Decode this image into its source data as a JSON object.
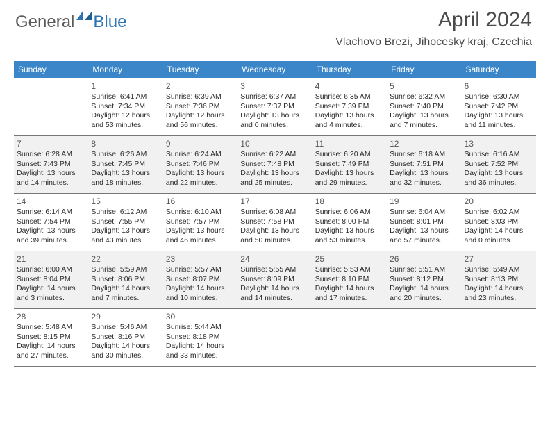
{
  "logo": {
    "textA": "General",
    "textB": "Blue"
  },
  "header": {
    "month_title": "April 2024",
    "location": "Vlachovo Brezi, Jihocesky kraj, Czechia"
  },
  "style": {
    "header_bg": "#3a86c8",
    "header_text": "#ffffff",
    "shaded_bg": "#f1f1f1",
    "line_color": "#767676",
    "body_text": "#2b2b2b",
    "day_number_color": "#555555",
    "logo_gray": "#5a5a5a",
    "logo_blue": "#2d74b3",
    "font_family": "Arial, Helvetica, sans-serif",
    "month_title_fontsize": 30,
    "location_fontsize": 16,
    "weekday_fontsize": 12,
    "daynum_fontsize": 12,
    "body_fontsize": 10.5
  },
  "weekdays": [
    "Sunday",
    "Monday",
    "Tuesday",
    "Wednesday",
    "Thursday",
    "Friday",
    "Saturday"
  ],
  "weeks": [
    {
      "shaded": false,
      "days": [
        null,
        {
          "num": "1",
          "sunrise": "6:41 AM",
          "sunset": "7:34 PM",
          "daylight": "12 hours and 53 minutes."
        },
        {
          "num": "2",
          "sunrise": "6:39 AM",
          "sunset": "7:36 PM",
          "daylight": "12 hours and 56 minutes."
        },
        {
          "num": "3",
          "sunrise": "6:37 AM",
          "sunset": "7:37 PM",
          "daylight": "13 hours and 0 minutes."
        },
        {
          "num": "4",
          "sunrise": "6:35 AM",
          "sunset": "7:39 PM",
          "daylight": "13 hours and 4 minutes."
        },
        {
          "num": "5",
          "sunrise": "6:32 AM",
          "sunset": "7:40 PM",
          "daylight": "13 hours and 7 minutes."
        },
        {
          "num": "6",
          "sunrise": "6:30 AM",
          "sunset": "7:42 PM",
          "daylight": "13 hours and 11 minutes."
        }
      ]
    },
    {
      "shaded": true,
      "days": [
        {
          "num": "7",
          "sunrise": "6:28 AM",
          "sunset": "7:43 PM",
          "daylight": "13 hours and 14 minutes."
        },
        {
          "num": "8",
          "sunrise": "6:26 AM",
          "sunset": "7:45 PM",
          "daylight": "13 hours and 18 minutes."
        },
        {
          "num": "9",
          "sunrise": "6:24 AM",
          "sunset": "7:46 PM",
          "daylight": "13 hours and 22 minutes."
        },
        {
          "num": "10",
          "sunrise": "6:22 AM",
          "sunset": "7:48 PM",
          "daylight": "13 hours and 25 minutes."
        },
        {
          "num": "11",
          "sunrise": "6:20 AM",
          "sunset": "7:49 PM",
          "daylight": "13 hours and 29 minutes."
        },
        {
          "num": "12",
          "sunrise": "6:18 AM",
          "sunset": "7:51 PM",
          "daylight": "13 hours and 32 minutes."
        },
        {
          "num": "13",
          "sunrise": "6:16 AM",
          "sunset": "7:52 PM",
          "daylight": "13 hours and 36 minutes."
        }
      ]
    },
    {
      "shaded": false,
      "days": [
        {
          "num": "14",
          "sunrise": "6:14 AM",
          "sunset": "7:54 PM",
          "daylight": "13 hours and 39 minutes."
        },
        {
          "num": "15",
          "sunrise": "6:12 AM",
          "sunset": "7:55 PM",
          "daylight": "13 hours and 43 minutes."
        },
        {
          "num": "16",
          "sunrise": "6:10 AM",
          "sunset": "7:57 PM",
          "daylight": "13 hours and 46 minutes."
        },
        {
          "num": "17",
          "sunrise": "6:08 AM",
          "sunset": "7:58 PM",
          "daylight": "13 hours and 50 minutes."
        },
        {
          "num": "18",
          "sunrise": "6:06 AM",
          "sunset": "8:00 PM",
          "daylight": "13 hours and 53 minutes."
        },
        {
          "num": "19",
          "sunrise": "6:04 AM",
          "sunset": "8:01 PM",
          "daylight": "13 hours and 57 minutes."
        },
        {
          "num": "20",
          "sunrise": "6:02 AM",
          "sunset": "8:03 PM",
          "daylight": "14 hours and 0 minutes."
        }
      ]
    },
    {
      "shaded": true,
      "days": [
        {
          "num": "21",
          "sunrise": "6:00 AM",
          "sunset": "8:04 PM",
          "daylight": "14 hours and 3 minutes."
        },
        {
          "num": "22",
          "sunrise": "5:59 AM",
          "sunset": "8:06 PM",
          "daylight": "14 hours and 7 minutes."
        },
        {
          "num": "23",
          "sunrise": "5:57 AM",
          "sunset": "8:07 PM",
          "daylight": "14 hours and 10 minutes."
        },
        {
          "num": "24",
          "sunrise": "5:55 AM",
          "sunset": "8:09 PM",
          "daylight": "14 hours and 14 minutes."
        },
        {
          "num": "25",
          "sunrise": "5:53 AM",
          "sunset": "8:10 PM",
          "daylight": "14 hours and 17 minutes."
        },
        {
          "num": "26",
          "sunrise": "5:51 AM",
          "sunset": "8:12 PM",
          "daylight": "14 hours and 20 minutes."
        },
        {
          "num": "27",
          "sunrise": "5:49 AM",
          "sunset": "8:13 PM",
          "daylight": "14 hours and 23 minutes."
        }
      ]
    },
    {
      "shaded": false,
      "days": [
        {
          "num": "28",
          "sunrise": "5:48 AM",
          "sunset": "8:15 PM",
          "daylight": "14 hours and 27 minutes."
        },
        {
          "num": "29",
          "sunrise": "5:46 AM",
          "sunset": "8:16 PM",
          "daylight": "14 hours and 30 minutes."
        },
        {
          "num": "30",
          "sunrise": "5:44 AM",
          "sunset": "8:18 PM",
          "daylight": "14 hours and 33 minutes."
        },
        null,
        null,
        null,
        null
      ]
    }
  ],
  "labels": {
    "sunrise": "Sunrise:",
    "sunset": "Sunset:",
    "daylight": "Daylight:"
  }
}
